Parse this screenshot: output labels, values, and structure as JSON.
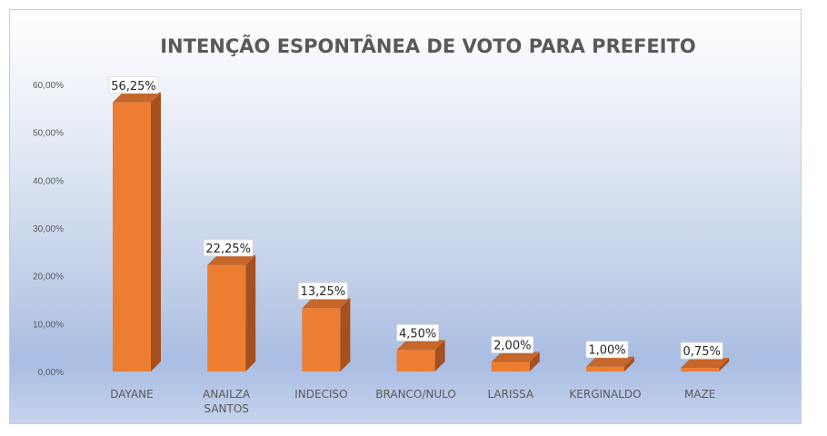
{
  "colors": {
    "bar_front": "#ED7D31",
    "bar_side": "#A5501F",
    "bar_top": "#C5662A"
  },
  "chart_data": {
    "type": "bar",
    "title": "INTENÇÃO ESPONTÂNEA DE VOTO PARA PREFEITO",
    "categories": [
      [
        "DAYANE"
      ],
      [
        "ANAILZA",
        "SANTOS"
      ],
      [
        "INDECISO"
      ],
      [
        "BRANCO/NULO"
      ],
      [
        "LARISSA"
      ],
      [
        "KERGINALDO"
      ],
      [
        "MAZE"
      ]
    ],
    "values": [
      56.25,
      22.25,
      13.25,
      4.5,
      2.0,
      1.0,
      0.75
    ],
    "data_labels": [
      "56,25%",
      "22,25%",
      "13,25%",
      "4,50%",
      "2,00%",
      "1,00%",
      "0,75%"
    ],
    "yticks": [
      "0,00%",
      "10,00%",
      "20,00%",
      "30,00%",
      "40,00%",
      "50,00%",
      "60,00%"
    ],
    "ylim": [
      0,
      60
    ],
    "grid": false,
    "legend": "none"
  }
}
